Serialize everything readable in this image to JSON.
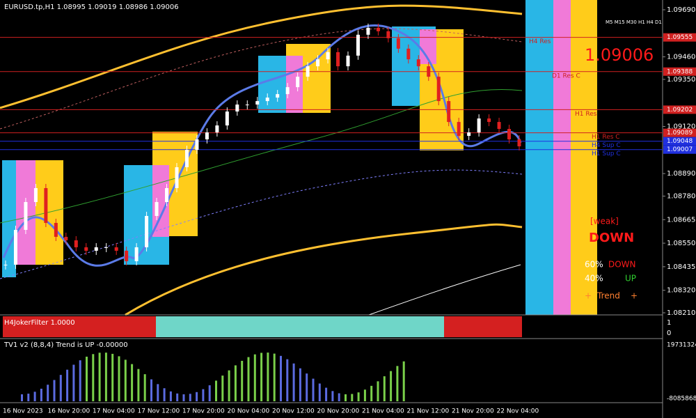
{
  "header": {
    "symbol": "EURUSD.tp,H1  1.08995 1.09019 1.08986 1.09006"
  },
  "price_axis": [
    {
      "value": 1.0969,
      "label": "1.09690"
    },
    {
      "value": 1.0946,
      "label": "1.09460"
    },
    {
      "value": 1.0935,
      "label": "1.09350"
    },
    {
      "value": 1.0912,
      "label": "1.09120"
    },
    {
      "value": 1.0889,
      "label": "1.08890"
    },
    {
      "value": 1.0878,
      "label": "1.08780"
    },
    {
      "value": 1.08665,
      "label": "1.08665"
    },
    {
      "value": 1.0855,
      "label": "1.08550"
    },
    {
      "value": 1.08435,
      "label": "1.08435"
    },
    {
      "value": 1.0832,
      "label": "1.08320"
    },
    {
      "value": 1.0821,
      "label": "1.08210"
    }
  ],
  "price_range": [
    1.0969,
    1.0821
  ],
  "time_axis": [
    "16 Nov 2023",
    "16 Nov 20:00",
    "17 Nov 04:00",
    "17 Nov 12:00",
    "17 Nov 20:00",
    "20 Nov 04:00",
    "20 Nov 12:00",
    "20 Nov 20:00",
    "21 Nov 04:00",
    "21 Nov 12:00",
    "21 Nov 20:00",
    "22 Nov 04:00"
  ],
  "closes": [
    1.08445,
    1.08615,
    1.08751,
    1.08819,
    1.08649,
    1.08581,
    1.08564,
    1.0853,
    1.08513,
    1.0853,
    1.0853,
    1.08513,
    1.08462,
    1.0853,
    1.08683,
    1.08751,
    1.08819,
    1.08921,
    1.09006,
    1.09057,
    1.09091,
    1.09125,
    1.09193,
    1.09227,
    1.09227,
    1.09244,
    1.09261,
    1.09278,
    1.09312,
    1.09363,
    1.09414,
    1.09448,
    1.09483,
    1.09414,
    1.09466,
    1.09568,
    1.09602,
    1.09585,
    1.09551,
    1.095,
    1.09448,
    1.09414,
    1.09363,
    1.09244,
    1.09142,
    1.09074,
    1.09091,
    1.09159,
    1.09142,
    1.09108,
    1.09057,
    1.09023
  ],
  "levels": [
    {
      "name": "H4 Res",
      "color": "#d02020",
      "price": {
        "value": 1.09555,
        "label": "1.09555"
      }
    },
    {
      "name": "D1 Res C",
      "color": "#d02020",
      "price": {
        "value": 1.09388,
        "label": "1.09388"
      }
    },
    {
      "name": "H1 Res",
      "color": "#d02020",
      "price": {
        "value": 1.09202,
        "label": "1.09202"
      }
    },
    {
      "name": "H1 Res C",
      "color": "#d02020",
      "price": {
        "value": 1.09089,
        "label": "1.09089"
      }
    },
    {
      "name": "H4 Sup C",
      "color": "#2030e0",
      "price": {
        "value": 1.09048,
        "label": "1.09048"
      }
    },
    {
      "name": "H1 Sup C",
      "color": "#2030e0",
      "price": {
        "value": 1.09007,
        "label": "1.09007"
      }
    }
  ],
  "dashboard": {
    "timeframes": "M5 M15 M30 H1 H4 D1",
    "price": "1.09006",
    "strength": "[weak]",
    "direction": "DOWN",
    "down_pct": "60%",
    "down_label": "DOWN",
    "up_pct": "40%",
    "up_label": "UP",
    "trend_left": "+",
    "trend": "Trend",
    "trend_right": "+"
  },
  "panel1": {
    "title": "H4JokerFilter 1.0000",
    "max": "1",
    "min": "0"
  },
  "panel2": {
    "title": "TV1 v2 (8,8,4) Trend is UP -0.00000",
    "max": "19731324",
    "min": "-8085868"
  }
}
